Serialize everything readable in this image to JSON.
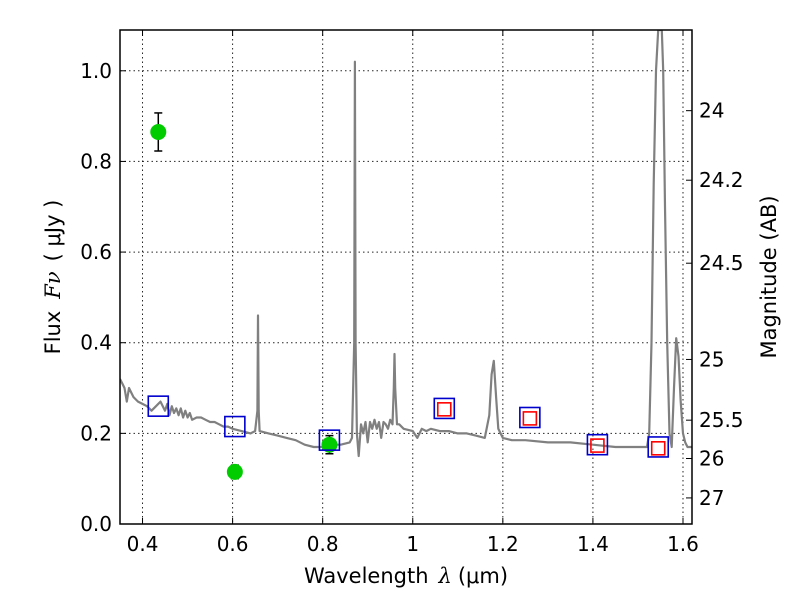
{
  "chart_data": {
    "type": "scatter",
    "xlabel_prefix": "Wavelength",
    "xlabel_lambda": "λ",
    "xlabel_unit": "(μm)",
    "ylabel_prefix": "Flux",
    "ylabel_symbol": "Fν",
    "ylabel_unit": "( μJy )",
    "y2label": "Magnitude (AB)",
    "xlim": [
      0.35,
      1.62
    ],
    "ylim": [
      0.0,
      1.09
    ],
    "grid": true,
    "x_ticks": [
      0.4,
      0.6,
      0.8,
      1.0,
      1.2,
      1.4,
      1.6
    ],
    "x_tick_labels": [
      "0.4",
      "0.6",
      "0.8",
      "1",
      "1.2",
      "1.4",
      "1.6"
    ],
    "y_ticks": [
      0.0,
      0.2,
      0.4,
      0.6,
      0.8,
      1.0
    ],
    "y_tick_labels": [
      "0.0",
      "0.2",
      "0.4",
      "0.6",
      "0.8",
      "1.0"
    ],
    "mag_ticks": [
      {
        "label": "24",
        "mag": 24.0
      },
      {
        "label": "24.2",
        "mag": 24.2
      },
      {
        "label": "24.5",
        "mag": 24.5
      },
      {
        "label": "25",
        "mag": 25.0
      },
      {
        "label": "25.5",
        "mag": 25.5
      },
      {
        "label": "26",
        "mag": 26.0
      },
      {
        "label": "27",
        "mag": 27.0
      }
    ],
    "series": [
      {
        "kind": "line",
        "color": "#808080",
        "x": [
          0.35,
          0.355,
          0.36,
          0.365,
          0.37,
          0.38,
          0.39,
          0.4,
          0.41,
          0.42,
          0.43,
          0.44,
          0.45,
          0.455,
          0.46,
          0.465,
          0.47,
          0.475,
          0.48,
          0.485,
          0.49,
          0.495,
          0.5,
          0.505,
          0.51,
          0.52,
          0.53,
          0.54,
          0.55,
          0.56,
          0.57,
          0.58,
          0.59,
          0.6,
          0.62,
          0.64,
          0.65,
          0.655,
          0.6565,
          0.658,
          0.66,
          0.68,
          0.7,
          0.72,
          0.74,
          0.76,
          0.78,
          0.8,
          0.82,
          0.84,
          0.86,
          0.865,
          0.87,
          0.8715,
          0.873,
          0.876,
          0.88,
          0.885,
          0.89,
          0.895,
          0.9,
          0.905,
          0.91,
          0.915,
          0.92,
          0.925,
          0.93,
          0.935,
          0.94,
          0.945,
          0.95,
          0.955,
          0.958,
          0.9595,
          0.961,
          0.965,
          0.97,
          0.98,
          1.0,
          1.01,
          1.02,
          1.03,
          1.04,
          1.06,
          1.08,
          1.1,
          1.12,
          1.14,
          1.16,
          1.17,
          1.175,
          1.18,
          1.185,
          1.19,
          1.2,
          1.22,
          1.25,
          1.3,
          1.35,
          1.4,
          1.45,
          1.5,
          1.52,
          1.525,
          1.53,
          1.535,
          1.54,
          1.545,
          1.548,
          1.55,
          1.553,
          1.556,
          1.56,
          1.565,
          1.57,
          1.575,
          1.58,
          1.585,
          1.59,
          1.595,
          1.6,
          1.605,
          1.61,
          1.62
        ],
        "y": [
          0.32,
          0.31,
          0.3,
          0.27,
          0.3,
          0.28,
          0.27,
          0.265,
          0.26,
          0.25,
          0.26,
          0.27,
          0.25,
          0.265,
          0.24,
          0.26,
          0.245,
          0.255,
          0.24,
          0.255,
          0.235,
          0.25,
          0.235,
          0.245,
          0.23,
          0.235,
          0.235,
          0.23,
          0.225,
          0.225,
          0.22,
          0.215,
          0.215,
          0.21,
          0.205,
          0.2,
          0.205,
          0.25,
          0.46,
          0.25,
          0.205,
          0.2,
          0.195,
          0.19,
          0.185,
          0.175,
          0.17,
          0.17,
          0.175,
          0.175,
          0.18,
          0.19,
          0.4,
          1.02,
          0.4,
          0.2,
          0.15,
          0.22,
          0.2,
          0.225,
          0.18,
          0.225,
          0.21,
          0.23,
          0.21,
          0.225,
          0.19,
          0.225,
          0.22,
          0.21,
          0.23,
          0.22,
          0.3,
          0.375,
          0.3,
          0.22,
          0.22,
          0.21,
          0.205,
          0.19,
          0.21,
          0.205,
          0.21,
          0.205,
          0.205,
          0.2,
          0.2,
          0.195,
          0.19,
          0.24,
          0.33,
          0.36,
          0.28,
          0.21,
          0.19,
          0.185,
          0.185,
          0.18,
          0.18,
          0.175,
          0.17,
          0.17,
          0.17,
          0.2,
          0.4,
          0.75,
          1.0,
          1.09,
          1.09,
          1.09,
          1.09,
          1.0,
          0.7,
          0.4,
          0.2,
          0.17,
          0.3,
          0.41,
          0.37,
          0.27,
          0.2,
          0.18,
          0.17,
          0.17
        ]
      },
      {
        "kind": "points",
        "marker": "circle",
        "color": "#00cc00",
        "points": [
          {
            "x": 0.435,
            "y": 0.865,
            "err": 0.042
          },
          {
            "x": 0.605,
            "y": 0.115,
            "err": 0.015
          },
          {
            "x": 0.815,
            "y": 0.175,
            "err": 0.02
          }
        ]
      },
      {
        "kind": "points",
        "marker": "square",
        "color": "#0000cc",
        "size": 20,
        "points": [
          {
            "x": 0.435,
            "y": 0.26
          },
          {
            "x": 0.605,
            "y": 0.215
          },
          {
            "x": 0.815,
            "y": 0.185
          },
          {
            "x": 1.07,
            "y": 0.255
          },
          {
            "x": 1.26,
            "y": 0.235
          },
          {
            "x": 1.41,
            "y": 0.175
          },
          {
            "x": 1.545,
            "y": 0.17
          }
        ]
      },
      {
        "kind": "points",
        "marker": "square",
        "color": "#ff0000",
        "size": 13,
        "points": [
          {
            "x": 1.07,
            "y": 0.253
          },
          {
            "x": 1.26,
            "y": 0.233
          },
          {
            "x": 1.41,
            "y": 0.173
          },
          {
            "x": 1.545,
            "y": 0.167
          }
        ]
      }
    ]
  }
}
